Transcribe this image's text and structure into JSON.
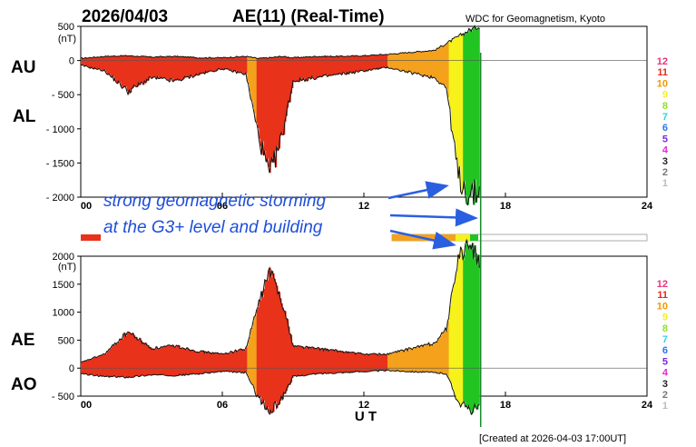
{
  "header": {
    "date": "2026/04/03",
    "title": "AE(11) (Real-Time)",
    "source": "WDC for Geomagnetism, Kyoto"
  },
  "footer": {
    "xlabel": "U T",
    "created": "[Created at 2026-04-03 17:00UT]"
  },
  "annotation": {
    "line1": "strong geomagnetic storming",
    "line2": "at the G3+ level and building"
  },
  "colors": {
    "red": "#e8321b",
    "orange": "#f4a11c",
    "yellow": "#f6f21a",
    "green": "#22c422",
    "arrow": "#2a5fe0"
  },
  "station_scale": [
    {
      "label": "12",
      "color": "#e8327a"
    },
    {
      "label": "11",
      "color": "#e62a1a"
    },
    {
      "label": "10",
      "color": "#f09a00"
    },
    {
      "label": "9",
      "color": "#f3ee2a"
    },
    {
      "label": "8",
      "color": "#8fe02a"
    },
    {
      "label": "7",
      "color": "#32d3e0"
    },
    {
      "label": "6",
      "color": "#2a78e6"
    },
    {
      "label": "5",
      "color": "#7a2ad6"
    },
    {
      "label": "4",
      "color": "#e22ad6"
    },
    {
      "label": "3",
      "color": "#222222"
    },
    {
      "label": "2",
      "color": "#777777"
    },
    {
      "label": "1",
      "color": "#bbbbbb"
    }
  ],
  "chart_data": [
    {
      "type": "area",
      "series": [
        {
          "name": "AU",
          "label": "AU"
        },
        {
          "name": "AL",
          "label": "AL"
        }
      ],
      "ylabel": "(nT)",
      "ylim": [
        -2000,
        500
      ],
      "yticks": [
        "500",
        "0",
        "- 500",
        "- 1000",
        "- 1500",
        "- 2000"
      ],
      "yticks_values": [
        500,
        0,
        -500,
        -1000,
        -1500,
        -2000
      ],
      "xlim": [
        0,
        24
      ],
      "xticks": [
        "00",
        "06",
        "12",
        "18",
        "24"
      ],
      "xticks_values": [
        0,
        6,
        12,
        18,
        24
      ],
      "x_hours": [
        0,
        1,
        2,
        3,
        4,
        5,
        6,
        7,
        7.5,
        8,
        8.5,
        9,
        10,
        11,
        12,
        13,
        14,
        15,
        15.5,
        16,
        16.5,
        16.9
      ],
      "au": [
        30,
        60,
        70,
        50,
        60,
        40,
        40,
        60,
        30,
        40,
        60,
        40,
        60,
        60,
        70,
        90,
        120,
        150,
        250,
        350,
        450,
        500
      ],
      "al": [
        -70,
        -150,
        -450,
        -250,
        -300,
        -200,
        -120,
        -200,
        -1050,
        -1700,
        -1150,
        -300,
        -250,
        -200,
        -150,
        -100,
        -180,
        -250,
        -400,
        -1700,
        -2000,
        -1900
      ]
    },
    {
      "type": "area",
      "series": [
        {
          "name": "AE",
          "label": "AE"
        },
        {
          "name": "AO",
          "label": "AO"
        }
      ],
      "ylabel": "(nT)",
      "ylim": [
        -500,
        2000
      ],
      "yticks": [
        "2000",
        "1500",
        "1000",
        "500",
        "0",
        "- 500"
      ],
      "yticks_values": [
        2000,
        1500,
        1000,
        500,
        0,
        -500
      ],
      "xlim": [
        0,
        24
      ],
      "xticks": [
        "00",
        "06",
        "12",
        "18",
        "24"
      ],
      "xticks_values": [
        0,
        6,
        12,
        18,
        24
      ],
      "x_hours": [
        0,
        1,
        2,
        3,
        4,
        5,
        6,
        7,
        7.5,
        8,
        8.5,
        9,
        10,
        11,
        12,
        13,
        14,
        15,
        15.5,
        16,
        16.5,
        16.9
      ],
      "ae": [
        100,
        250,
        650,
        350,
        400,
        300,
        250,
        350,
        1100,
        1750,
        1250,
        400,
        350,
        300,
        250,
        250,
        350,
        450,
        700,
        2000,
        2200,
        1900
      ],
      "ao": [
        -100,
        -150,
        -160,
        -120,
        -130,
        -100,
        -60,
        -80,
        -500,
        -800,
        -550,
        -150,
        -100,
        -80,
        -60,
        -40,
        -60,
        -80,
        -100,
        -600,
        -750,
        -700
      ]
    }
  ]
}
